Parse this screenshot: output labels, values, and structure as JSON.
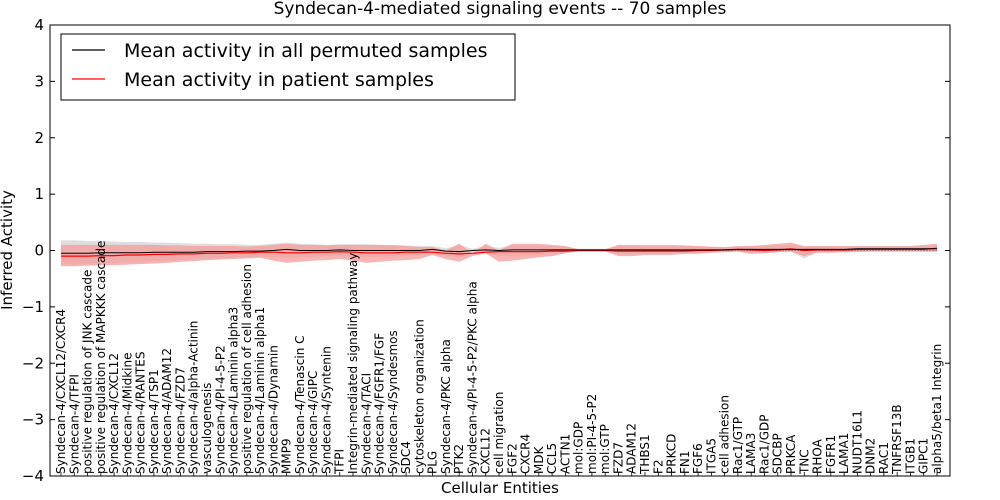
{
  "chart_data": {
    "type": "line",
    "title": "Syndecan-4-mediated signaling events -- 70 samples",
    "xlabel": "Cellular Entities",
    "ylabel": "Inferred Activity",
    "ylim": [
      -4,
      4
    ],
    "yticks": [
      -4,
      -3,
      -2,
      -1,
      0,
      1,
      2,
      3,
      4
    ],
    "ytick_labels": [
      "−4",
      "−3",
      "−2",
      "−1",
      "0",
      "1",
      "2",
      "3",
      "4"
    ],
    "legend_position": "top-left",
    "colors": {
      "permuted": "#000000",
      "patient": "#ff0000",
      "patient_band": "#f59a9a",
      "permuted_band": "#c8c8c8",
      "axes": "#000000"
    },
    "categories": [
      "Syndecan-4/CXCL12/CXCR4",
      "Syndecan-4/TFPI",
      "positive regulation of JNK cascade",
      "positive regulation of MAPKKK cascade",
      "Syndecan-4/CXCL12",
      "Syndecan-4/Midkine",
      "Syndecan-4/RANTES",
      "Syndecan-4/TSP1",
      "Syndecan-4/ADAM12",
      "Syndecan-4/FZD7",
      "Syndecan-4/alpha-Actinin",
      "vasculogenesis",
      "Syndecan-4/PI-4-5-P2",
      "Syndecan-4/Laminin alpha3",
      "positive regulation of cell adhesion",
      "Syndecan-4/Laminin alpha1",
      "Syndecan-4/Dynamin",
      "MMP9",
      "Syndecan-4/Tenascin C",
      "Syndecan-4/GIPC",
      "Syndecan-4/Syntenin",
      "TFPI",
      "Integrin-mediated signaling pathway",
      "Syndecan-4/TACI",
      "Syndecan-4/FGFR1/FGF",
      "Syndecan-4/Syndesmos",
      "SDC4",
      "cytoskeleton organization",
      "PLG",
      "Syndecan-4/PKC alpha",
      "PTK2",
      "Syndecan-4/PI-4-5-P2/PKC alpha",
      "CXCL12",
      "cell migration",
      "FGF2",
      "CXCR4",
      "MDK",
      "CCL5",
      "ACTN1",
      "mol:GDP",
      "mol:PI-4-5-P2",
      "mol:GTP",
      "FZD7",
      "ADAM12",
      "THBS1",
      "F2",
      "PRKCD",
      "FN1",
      "FGF6",
      "ITGA5",
      "cell adhesion",
      "Rac1/GTP",
      "LAMA3",
      "Rac1/GDP",
      "SDCBP",
      "PRKCA",
      "TNC",
      "RHOA",
      "FGFR1",
      "LAMA1",
      "NUDT16L1",
      "DNM2",
      "RAC1",
      "TNFRSF13B",
      "ITGB1",
      "GIPC1",
      "alpha5/beta1 Integrin"
    ],
    "series": [
      {
        "name": "Mean activity in all permuted samples",
        "values": [
          -0.05,
          -0.05,
          -0.05,
          -0.04,
          -0.04,
          -0.04,
          -0.04,
          -0.03,
          -0.03,
          -0.03,
          -0.03,
          -0.02,
          -0.02,
          -0.02,
          -0.01,
          -0.01,
          0.0,
          0.02,
          0.0,
          0.0,
          0.0,
          0.01,
          0.0,
          0.0,
          0.0,
          0.0,
          0.0,
          0.0,
          0.02,
          -0.01,
          -0.02,
          0.0,
          0.01,
          0.0,
          0.01,
          0.01,
          0.01,
          0.01,
          0.01,
          0.01,
          0.01,
          0.01,
          0.01,
          0.01,
          0.01,
          0.01,
          0.01,
          0.01,
          0.01,
          0.01,
          0.01,
          0.02,
          0.02,
          0.02,
          0.02,
          0.02,
          0.02,
          0.02,
          0.02,
          0.02,
          0.03,
          0.03,
          0.03,
          0.03,
          0.03,
          0.03,
          0.03
        ]
      },
      {
        "name": "Mean activity in patient samples",
        "values": [
          -0.1,
          -0.1,
          -0.1,
          -0.09,
          -0.09,
          -0.08,
          -0.08,
          -0.07,
          -0.07,
          -0.06,
          -0.06,
          -0.05,
          -0.05,
          -0.04,
          -0.04,
          -0.03,
          -0.03,
          -0.04,
          -0.04,
          -0.03,
          -0.03,
          -0.02,
          -0.03,
          -0.04,
          -0.04,
          -0.04,
          -0.03,
          -0.03,
          -0.03,
          -0.05,
          -0.06,
          -0.05,
          -0.03,
          -0.02,
          -0.02,
          -0.02,
          -0.02,
          -0.01,
          -0.01,
          0.0,
          0.0,
          0.0,
          -0.01,
          -0.01,
          -0.01,
          -0.01,
          -0.01,
          -0.01,
          0.0,
          0.0,
          0.01,
          0.02,
          0.01,
          0.0,
          0.01,
          0.03,
          0.0,
          0.01,
          0.01,
          0.01,
          0.02,
          0.02,
          0.02,
          0.02,
          0.02,
          0.02,
          0.04
        ]
      }
    ],
    "bands": {
      "patient_lower": [
        -0.28,
        -0.28,
        -0.27,
        -0.26,
        -0.26,
        -0.25,
        -0.24,
        -0.23,
        -0.22,
        -0.2,
        -0.19,
        -0.17,
        -0.16,
        -0.15,
        -0.14,
        -0.13,
        -0.18,
        -0.22,
        -0.2,
        -0.18,
        -0.17,
        -0.15,
        -0.18,
        -0.22,
        -0.2,
        -0.18,
        -0.17,
        -0.15,
        -0.08,
        -0.15,
        -0.2,
        -0.1,
        -0.05,
        -0.2,
        -0.18,
        -0.15,
        -0.12,
        -0.1,
        -0.05,
        -0.02,
        -0.02,
        -0.02,
        -0.1,
        -0.1,
        -0.08,
        -0.08,
        -0.08,
        -0.06,
        -0.06,
        -0.04,
        -0.03,
        -0.02,
        -0.06,
        -0.05,
        -0.03,
        -0.02,
        -0.1,
        -0.04,
        -0.04,
        -0.03,
        -0.02,
        -0.02,
        -0.02,
        -0.02,
        -0.02,
        -0.02,
        -0.02
      ],
      "patient_upper": [
        0.1,
        0.1,
        0.1,
        0.1,
        0.1,
        0.1,
        0.1,
        0.1,
        0.09,
        0.09,
        0.08,
        0.08,
        0.08,
        0.08,
        0.07,
        0.08,
        0.1,
        0.12,
        0.1,
        0.1,
        0.09,
        0.1,
        0.1,
        0.1,
        0.1,
        0.09,
        0.08,
        0.06,
        0.06,
        0.0,
        0.12,
        -0.05,
        0.12,
        0.0,
        0.12,
        0.12,
        0.12,
        0.1,
        0.08,
        0.02,
        0.02,
        0.02,
        0.1,
        0.1,
        0.1,
        0.1,
        0.1,
        0.09,
        0.08,
        0.07,
        0.06,
        0.08,
        0.08,
        0.1,
        0.12,
        0.14,
        0.08,
        0.08,
        0.08,
        0.08,
        0.08,
        0.08,
        0.08,
        0.08,
        0.08,
        0.1,
        0.12
      ],
      "permuted_lower": [
        -0.25,
        -0.25,
        -0.24,
        -0.23,
        -0.22,
        -0.21,
        -0.2,
        -0.19,
        -0.18,
        -0.17,
        -0.16,
        -0.15,
        -0.14,
        -0.13,
        -0.12,
        -0.11,
        -0.12,
        -0.13,
        -0.12,
        -0.11,
        -0.1,
        -0.1,
        -0.11,
        -0.12,
        -0.11,
        -0.1,
        -0.09,
        -0.08,
        -0.04,
        -0.1,
        -0.12,
        -0.06,
        -0.04,
        -0.1,
        -0.1,
        -0.09,
        -0.08,
        -0.06,
        -0.03,
        -0.01,
        -0.01,
        -0.01,
        -0.06,
        -0.06,
        -0.05,
        -0.05,
        -0.05,
        -0.04,
        -0.04,
        -0.03,
        -0.02,
        -0.02,
        -0.04,
        -0.04,
        -0.03,
        -0.02,
        -0.14,
        -0.03,
        -0.03,
        -0.03,
        -0.03,
        -0.02,
        -0.02,
        -0.02,
        -0.02,
        -0.02,
        -0.02
      ],
      "permuted_upper": [
        0.18,
        0.18,
        0.17,
        0.17,
        0.16,
        0.15,
        0.15,
        0.14,
        0.14,
        0.13,
        0.12,
        0.12,
        0.11,
        0.11,
        0.1,
        0.1,
        0.12,
        0.14,
        0.12,
        0.11,
        0.1,
        0.11,
        0.11,
        0.11,
        0.1,
        0.1,
        0.09,
        0.08,
        0.08,
        0.04,
        0.1,
        0.03,
        0.08,
        0.05,
        0.09,
        0.09,
        0.09,
        0.08,
        0.07,
        0.03,
        0.03,
        0.03,
        0.08,
        0.08,
        0.08,
        0.08,
        0.08,
        0.07,
        0.07,
        0.06,
        0.06,
        0.07,
        0.07,
        0.08,
        0.09,
        0.1,
        0.06,
        0.07,
        0.07,
        0.07,
        0.07,
        0.07,
        0.07,
        0.07,
        0.07,
        0.08,
        0.09
      ]
    }
  }
}
